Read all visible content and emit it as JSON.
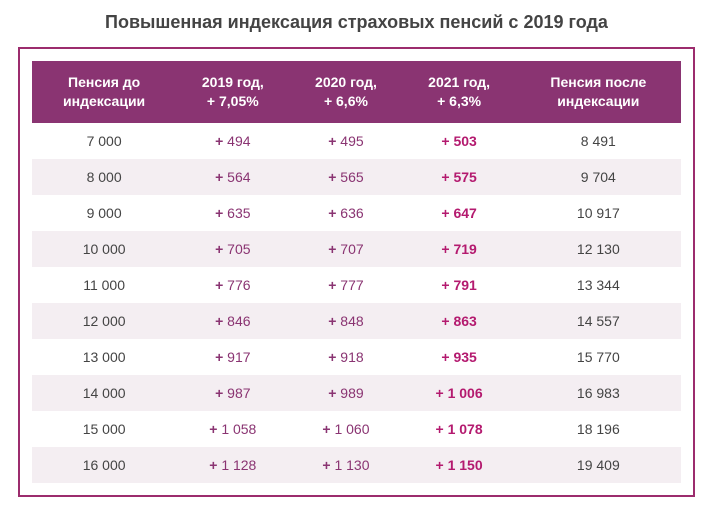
{
  "title": "Повышенная индексация страховых пенсий с 2019 года",
  "colors": {
    "frame_border": "#9c2c6d",
    "header_bg": "#8a3472",
    "header_text": "#ffffff",
    "row_even_bg": "#ffffff",
    "row_odd_bg": "#f4eef2",
    "plus_2019": "#8a3472",
    "plus_2020": "#8a3472",
    "plus_2021": "#b41a6f",
    "text": "#444444"
  },
  "table": {
    "columns": [
      {
        "line1": "Пенсия до",
        "line2": "индексации"
      },
      {
        "line1": "2019 год,",
        "line2": "+ 7,05%"
      },
      {
        "line1": "2020 год,",
        "line2": "+ 6,6%"
      },
      {
        "line1": "2021 год,",
        "line2": "+ 6,3%"
      },
      {
        "line1": "Пенсия после",
        "line2": "индексации"
      }
    ],
    "rows": [
      {
        "before": "7 000",
        "y2019": "494",
        "y2020": "495",
        "y2021": "503",
        "after": "8 491"
      },
      {
        "before": "8 000",
        "y2019": "564",
        "y2020": "565",
        "y2021": "575",
        "after": "9 704"
      },
      {
        "before": "9 000",
        "y2019": "635",
        "y2020": "636",
        "y2021": "647",
        "after": "10 917"
      },
      {
        "before": "10 000",
        "y2019": "705",
        "y2020": "707",
        "y2021": "719",
        "after": "12 130"
      },
      {
        "before": "11 000",
        "y2019": "776",
        "y2020": "777",
        "y2021": "791",
        "after": "13 344"
      },
      {
        "before": "12 000",
        "y2019": "846",
        "y2020": "848",
        "y2021": "863",
        "after": "14 557"
      },
      {
        "before": "13 000",
        "y2019": "917",
        "y2020": "918",
        "y2021": "935",
        "after": "15 770"
      },
      {
        "before": "14 000",
        "y2019": "987",
        "y2020": "989",
        "y2021": "1 006",
        "after": "16 983"
      },
      {
        "before": "15 000",
        "y2019": "1 058",
        "y2020": "1 060",
        "y2021": "1 078",
        "after": "18 196"
      },
      {
        "before": "16 000",
        "y2019": "1 128",
        "y2020": "1 130",
        "y2021": "1 150",
        "after": "19 409"
      }
    ]
  }
}
